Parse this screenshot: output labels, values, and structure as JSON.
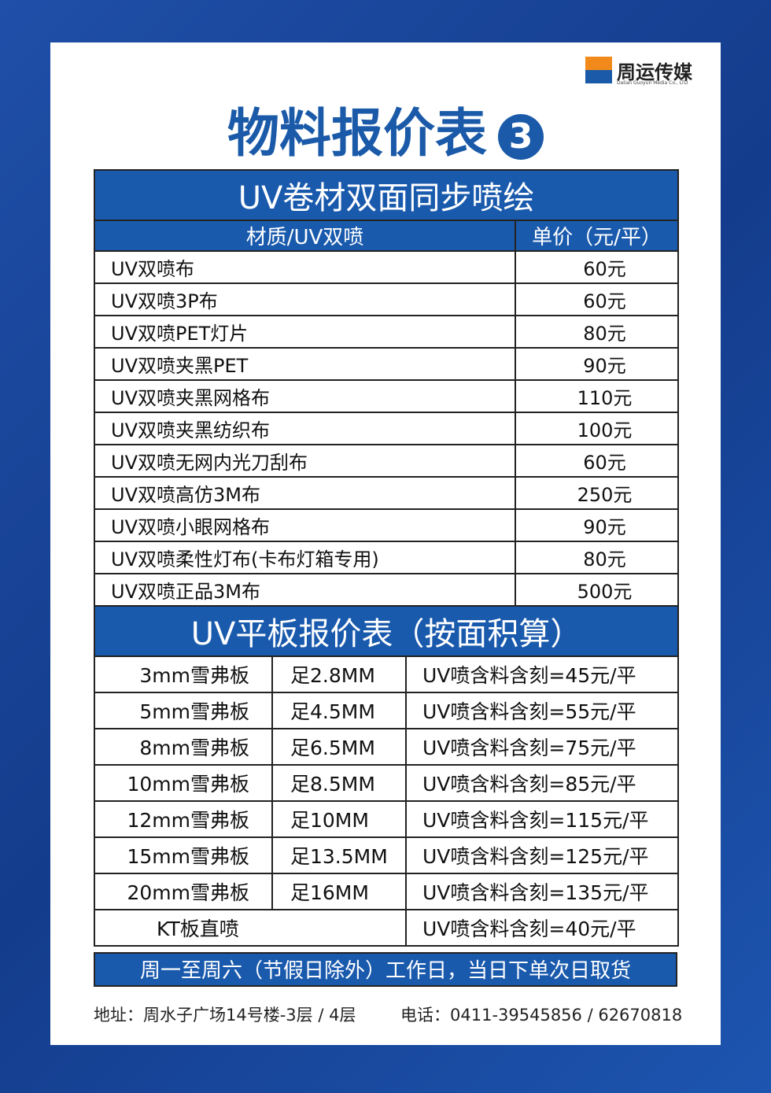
{
  "logo": {
    "brand": "周运传媒",
    "subtitle": "Dalian Guoyun Media Co., LTD"
  },
  "header": {
    "title": "物料报价表",
    "badge": "3"
  },
  "section1": {
    "title": "UV卷材双面同步喷绘",
    "columns": [
      "材质/UV双喷",
      "单价（元/平）"
    ],
    "rows": [
      [
        "UV双喷布",
        "60元"
      ],
      [
        "UV双喷3P布",
        "60元"
      ],
      [
        "UV双喷PET灯片",
        "80元"
      ],
      [
        "UV双喷夹黑PET",
        "90元"
      ],
      [
        "UV双喷夹黑网格布",
        "110元"
      ],
      [
        "UV双喷夹黑纺织布",
        "100元"
      ],
      [
        "UV双喷无网内光刀刮布",
        "60元"
      ],
      [
        "UV双喷高仿3M布",
        "250元"
      ],
      [
        "UV双喷小眼网格布",
        "90元"
      ],
      [
        "UV双喷柔性灯布(卡布灯箱专用)",
        "80元"
      ],
      [
        "UV双喷正品3M布",
        "500元"
      ]
    ]
  },
  "section2": {
    "title": "UV平板报价表（按面积算）",
    "rows": [
      [
        "3mm雪弗板",
        "足2.8MM",
        "UV喷含料含刻=45元/平"
      ],
      [
        "5mm雪弗板",
        "足4.5MM",
        "UV喷含料含刻=55元/平"
      ],
      [
        "8mm雪弗板",
        "足6.5MM",
        "UV喷含料含刻=75元/平"
      ],
      [
        "10mm雪弗板",
        "足8.5MM",
        "UV喷含料含刻=85元/平"
      ],
      [
        "12mm雪弗板",
        "足10MM",
        "UV喷含料含刻=115元/平"
      ],
      [
        "15mm雪弗板",
        "足13.5MM",
        "UV喷含料含刻=125元/平"
      ],
      [
        "20mm雪弗板",
        "足16MM",
        "UV喷含料含刻=135元/平"
      ],
      [
        "KT板直喷",
        "UV喷含料含刻=40元/平"
      ]
    ]
  },
  "footer": {
    "note": "周一至周六（节假日除外）工作日，当日下单次日取货",
    "address": "地址：周水子广场14号楼-3层 / 4层",
    "phone": "电话：0411-39545856 / 62670818"
  }
}
